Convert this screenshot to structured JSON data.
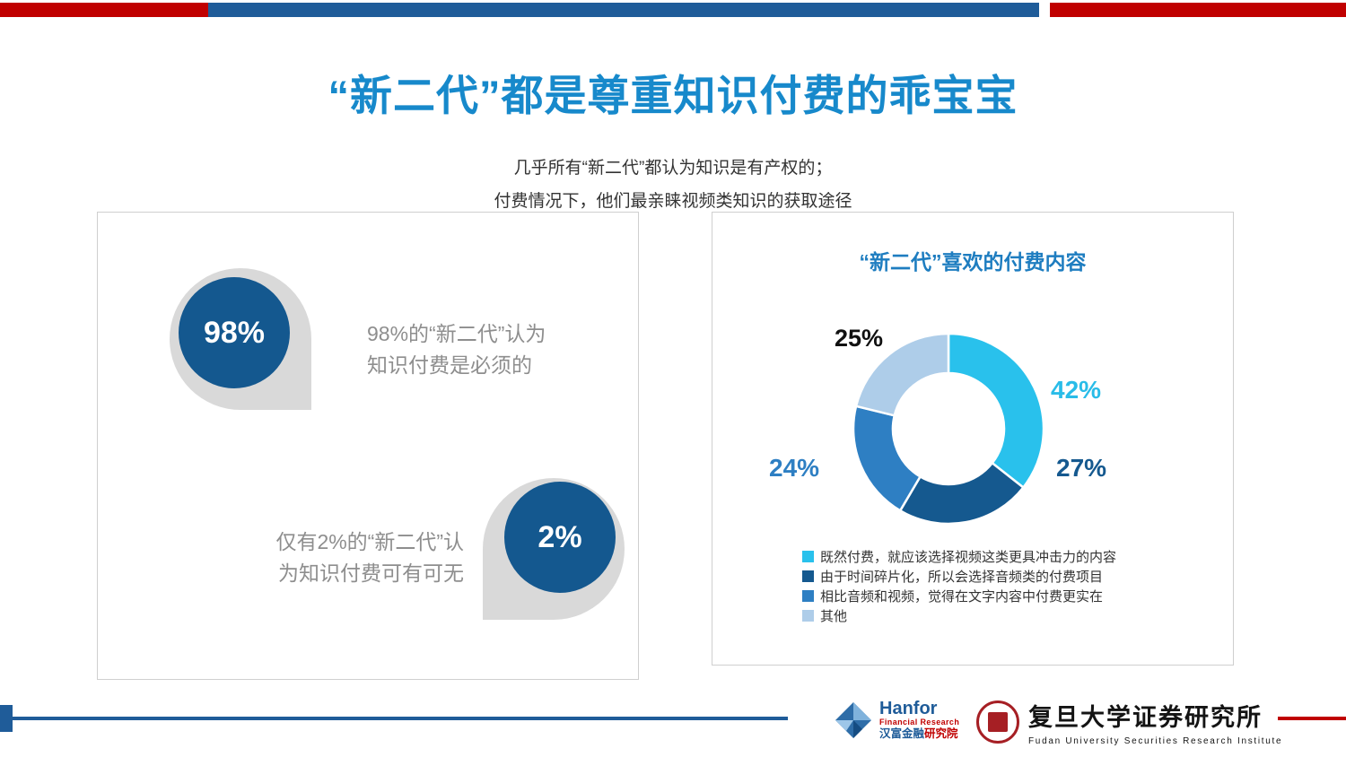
{
  "page": {
    "title": "“新二代”都是尊重知识付费的乖宝宝",
    "subtitle_line1": "几乎所有“新二代”都认为知识是有产权的；",
    "subtitle_line2": "付费情况下，他们最亲睐视频类知识的获取途径"
  },
  "left_panel": {
    "stat1": {
      "value": "98%",
      "line1": "98%的“新二代”认为",
      "line2": "知识付费是必须的"
    },
    "stat2": {
      "value": "2%",
      "line1": "仅有2%的“新二代”认",
      "line2": "为知识付费可有可无"
    }
  },
  "right_panel": {
    "title": "“新二代”喜欢的付费内容"
  },
  "chart_data": {
    "type": "pie",
    "donut": true,
    "title": "“新二代”喜欢的付费内容",
    "legend_position": "bottom",
    "segments": [
      {
        "name": "既然付费，就应该选择视频这类更具冲击力的内容",
        "value": 42,
        "label": "42%",
        "color": "#29C1EC",
        "label_color": "#29BCE8"
      },
      {
        "name": "由于时间碎片化，所以会选择音频类的付费项目",
        "value": 27,
        "label": "27%",
        "color": "#15598F",
        "label_color": "#15598F"
      },
      {
        "name": "相比音频和视频，觉得在文字内容中付费更实在",
        "value": 24,
        "label": "24%",
        "color": "#2E7FC3",
        "label_color": "#2E7FC3"
      },
      {
        "name": "其他",
        "value": 25,
        "label": "25%",
        "color": "#AECDE9",
        "label_color": "#111111"
      }
    ]
  },
  "footer": {
    "hanfor": {
      "name": "Hanfor",
      "sub": "Financial Research",
      "cn": "汉富金融",
      "cn_accent": "研究院"
    },
    "fudan": {
      "cn": "复旦大学证券研究所",
      "en": "Fudan University Securities Research Institute"
    }
  },
  "colors": {
    "brand_blue": "#1F5C99",
    "brand_red": "#C00000",
    "title_blue": "#1789CB",
    "stat_circle_blue": "#14588F"
  }
}
